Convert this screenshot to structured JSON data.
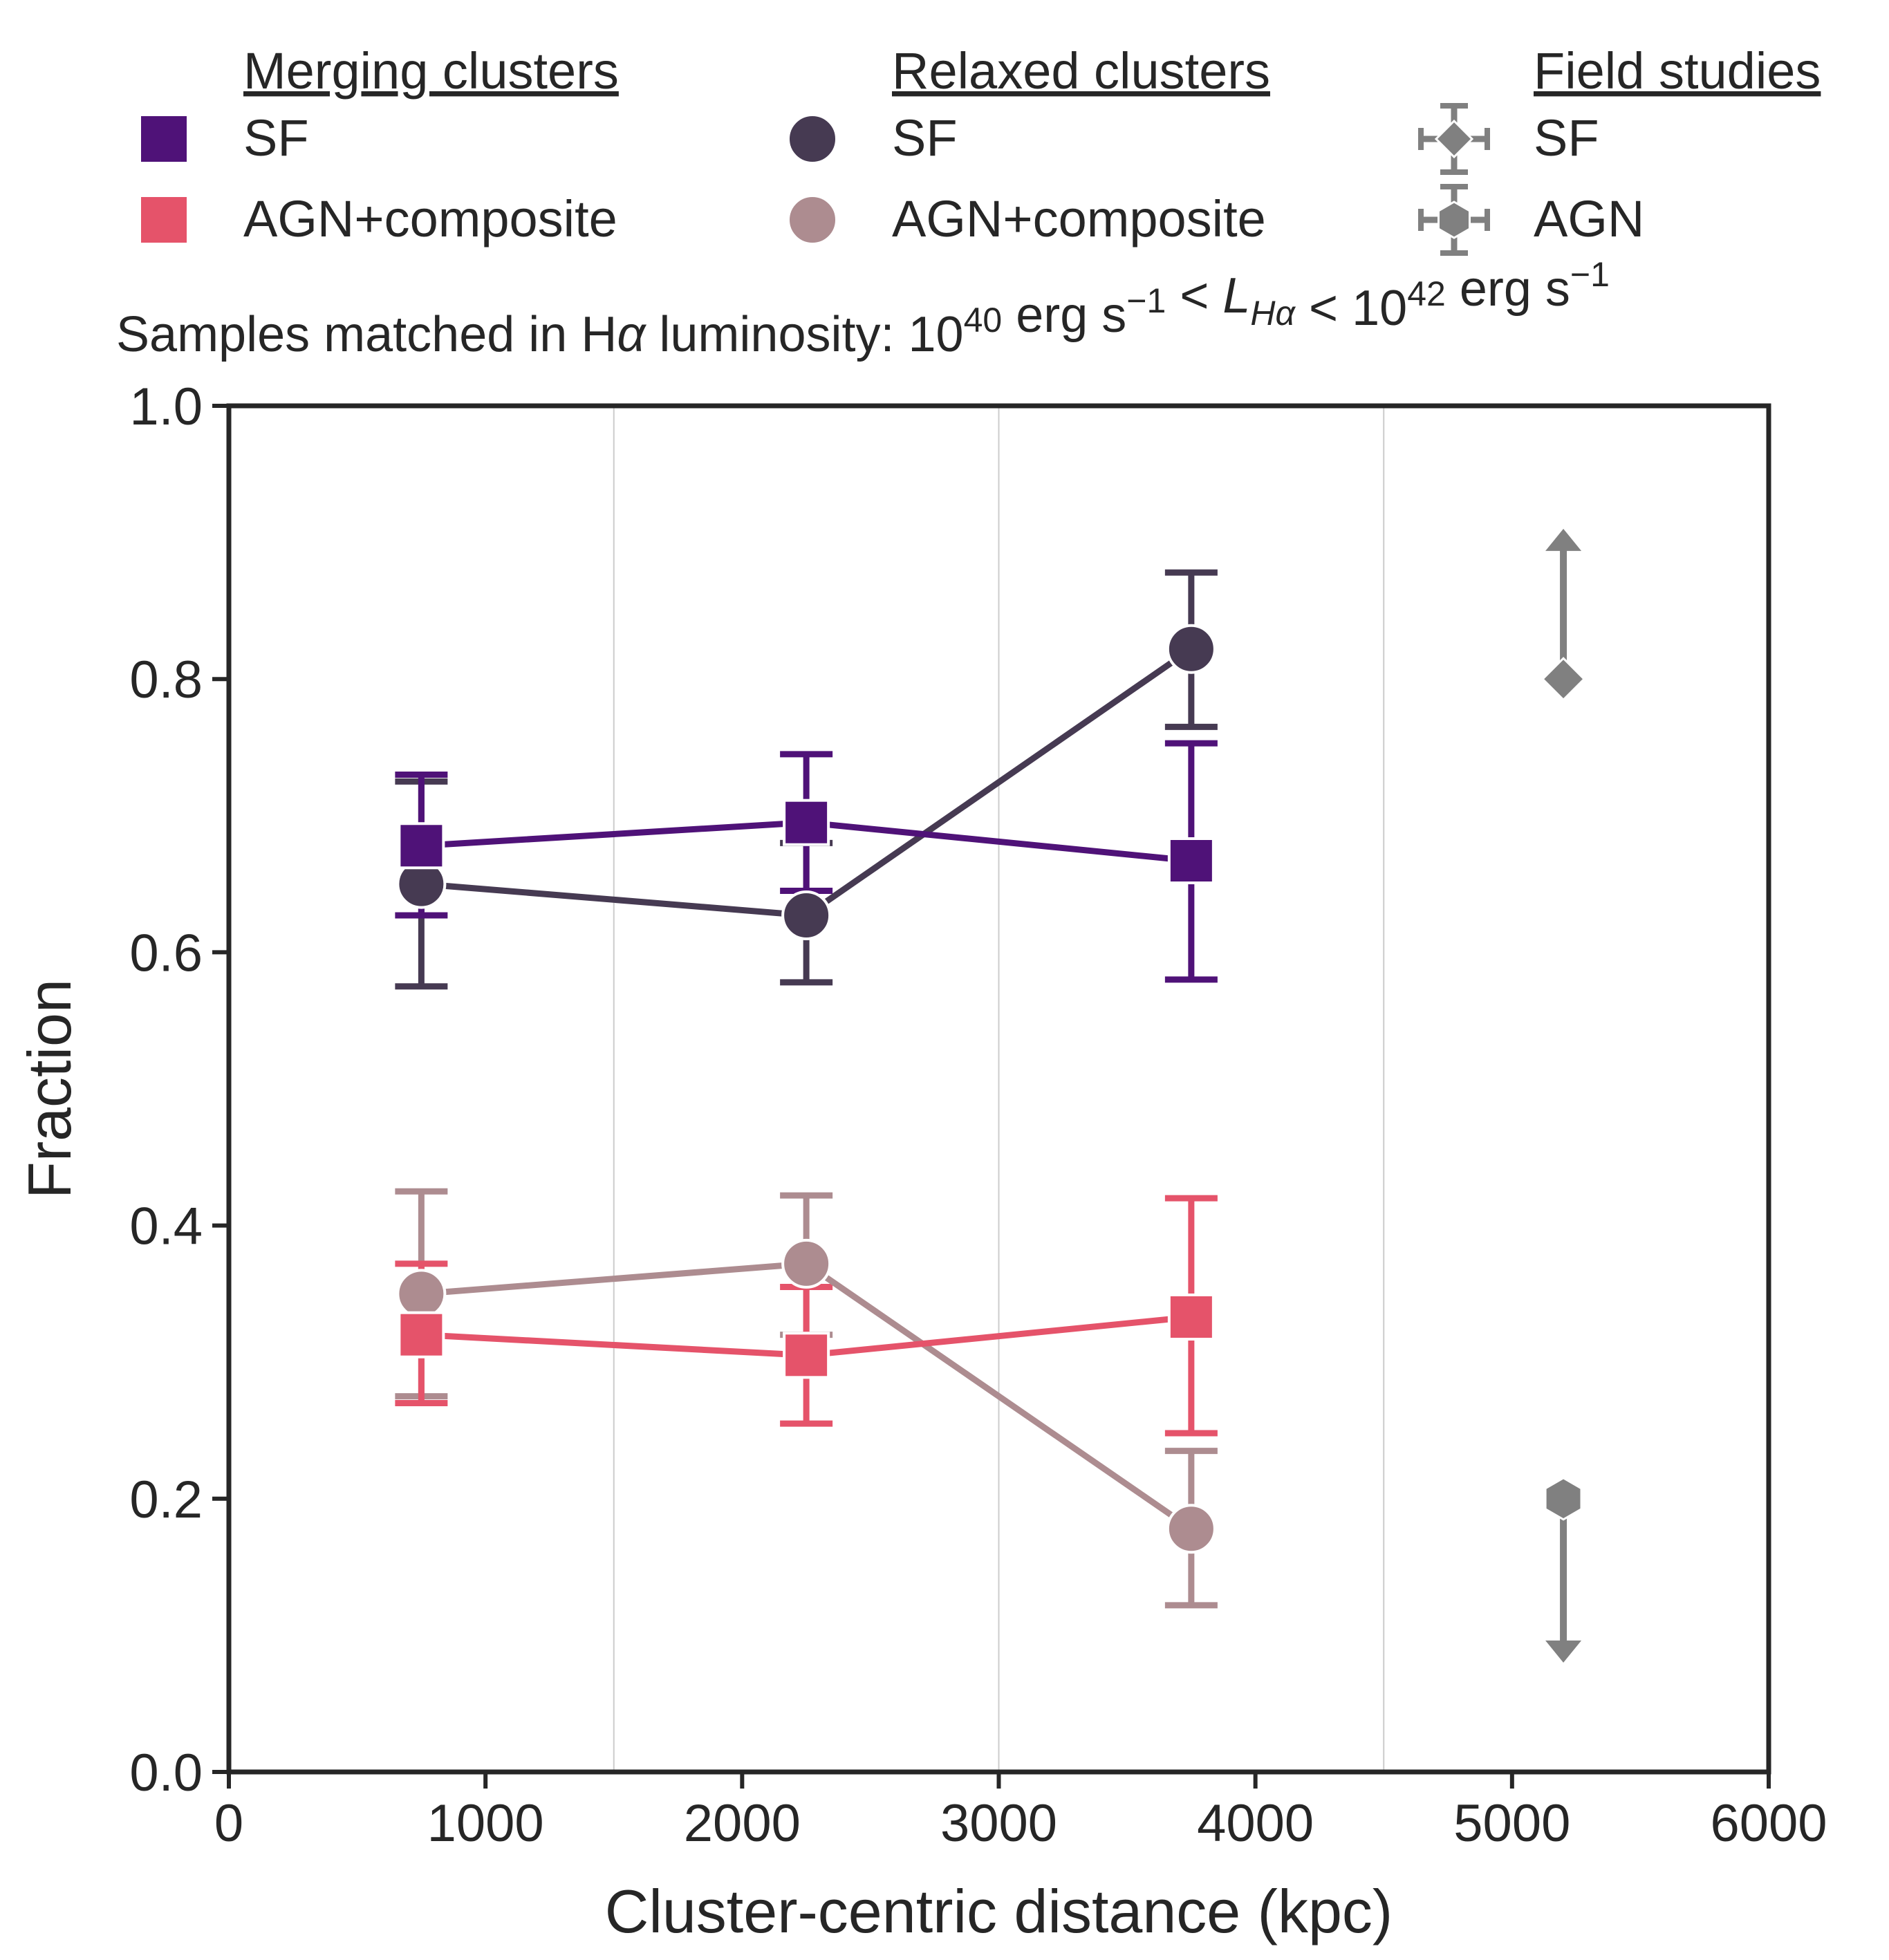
{
  "chart_data": {
    "type": "line",
    "subtitle_parts": [
      "Samples matched in H",
      "α",
      " luminosity: 10",
      "40",
      " erg s",
      "−1",
      " < ",
      "L",
      "Hα",
      " < 10",
      "42",
      " erg s",
      "−1"
    ],
    "xlabel": "Cluster-centric distance (kpc)",
    "ylabel": "Fraction",
    "xlim": [
      0,
      6000
    ],
    "ylim": [
      0.0,
      1.0
    ],
    "xticks": [
      0,
      1000,
      2000,
      3000,
      4000,
      5000,
      6000
    ],
    "yticks": [
      0.0,
      0.2,
      0.4,
      0.6,
      0.8,
      1.0
    ],
    "xtick_labels": [
      "0",
      "1000",
      "2000",
      "3000",
      "4000",
      "5000",
      "6000"
    ],
    "ytick_labels": [
      "0.0",
      "0.2",
      "0.4",
      "0.6",
      "0.8",
      "1.0"
    ],
    "vgrid": [
      1500,
      3000,
      4500
    ],
    "legend": {
      "groups": [
        {
          "title": "Merging clusters",
          "entries": [
            {
              "label": "SF",
              "marker": "square",
              "color": "#4f1278"
            },
            {
              "label": "AGN+composite",
              "marker": "square",
              "color": "#e5536a"
            }
          ]
        },
        {
          "title": "Relaxed clusters",
          "entries": [
            {
              "label": "SF",
              "marker": "circle",
              "color": "#463a52"
            },
            {
              "label": "AGN+composite",
              "marker": "circle",
              "color": "#ad8c90"
            }
          ]
        },
        {
          "title": "Field studies",
          "entries": [
            {
              "label": "SF",
              "marker": "diamond",
              "color": "#808080"
            },
            {
              "label": "AGN",
              "marker": "hexagon",
              "color": "#808080"
            }
          ]
        }
      ]
    },
    "series": [
      {
        "name": "Relaxed clusters SF",
        "marker": "circle",
        "color": "#463a52",
        "x": [
          750,
          2250,
          3750
        ],
        "y": [
          0.65,
          0.627,
          0.822
        ],
        "yerr_low": [
          0.575,
          0.578,
          0.765
        ],
        "yerr_high": [
          0.725,
          0.68,
          0.878
        ]
      },
      {
        "name": "Merging clusters SF",
        "marker": "square",
        "color": "#4f1278",
        "x": [
          750,
          2250,
          3750
        ],
        "y": [
          0.678,
          0.695,
          0.667
        ],
        "yerr_low": [
          0.627,
          0.645,
          0.58
        ],
        "yerr_high": [
          0.73,
          0.745,
          0.753
        ]
      },
      {
        "name": "Relaxed clusters AGN+composite",
        "marker": "circle",
        "color": "#ad8c90",
        "x": [
          750,
          2250,
          3750
        ],
        "y": [
          0.35,
          0.372,
          0.178
        ],
        "yerr_low": [
          0.275,
          0.32,
          0.122
        ],
        "yerr_high": [
          0.425,
          0.422,
          0.235
        ]
      },
      {
        "name": "Merging clusters AGN+composite",
        "marker": "square",
        "color": "#e5536a",
        "x": [
          750,
          2250,
          3750
        ],
        "y": [
          0.32,
          0.305,
          0.333
        ],
        "yerr_low": [
          0.27,
          0.255,
          0.248
        ],
        "yerr_high": [
          0.372,
          0.355,
          0.42
        ]
      }
    ],
    "field_points": [
      {
        "name": "Field SF",
        "marker": "diamond",
        "color": "#808080",
        "x": 5200,
        "y": 0.8,
        "limit": "lower",
        "arrow_to": 0.91
      },
      {
        "name": "Field AGN",
        "marker": "hexagon",
        "color": "#808080",
        "x": 5200,
        "y": 0.2,
        "limit": "upper",
        "arrow_to": 0.08
      }
    ]
  }
}
